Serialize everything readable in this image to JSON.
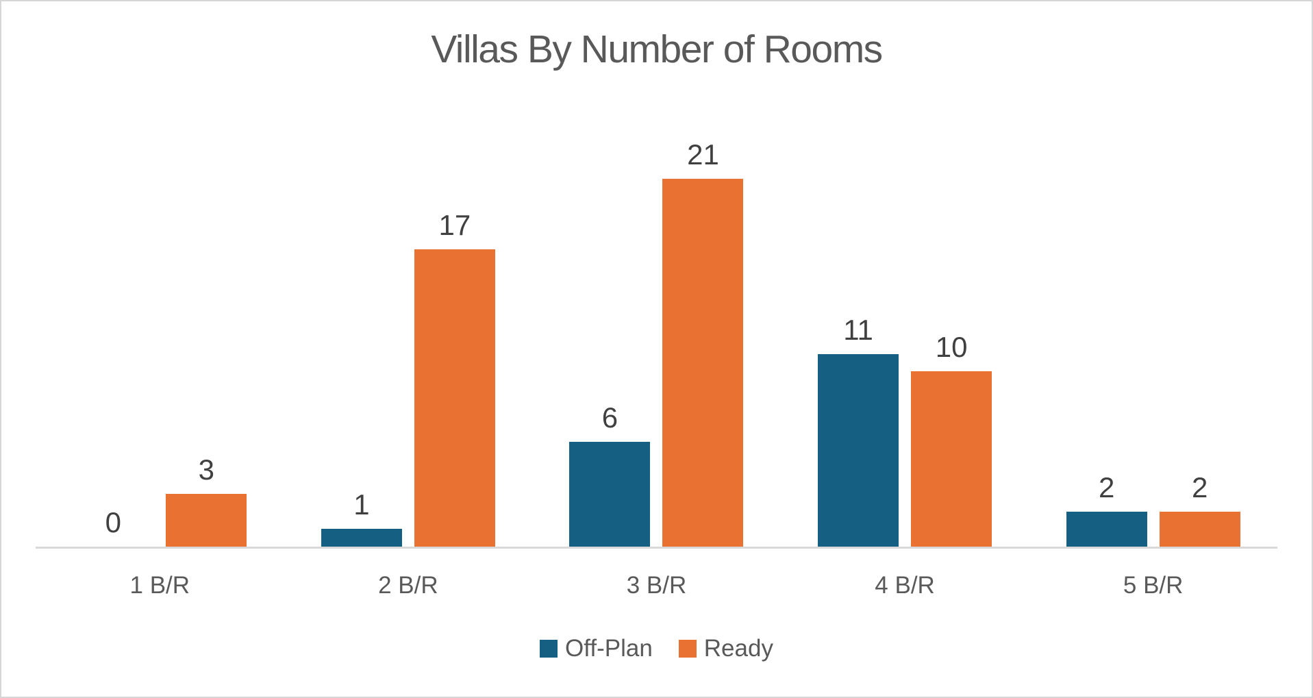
{
  "title": "Villas By Number of Rooms",
  "chart_data": {
    "type": "bar",
    "title": "Villas By Number of Rooms",
    "categories": [
      "1 B/R",
      "2 B/R",
      "3 B/R",
      "4 B/R",
      "5 B/R"
    ],
    "series": [
      {
        "name": "Off-Plan",
        "color": "#156082",
        "values": [
          0,
          1,
          6,
          11,
          2
        ]
      },
      {
        "name": "Ready",
        "color": "#E97132",
        "values": [
          3,
          17,
          21,
          10,
          2
        ]
      }
    ],
    "xlabel": "",
    "ylabel": "",
    "ylim": [
      0,
      27
    ],
    "grid": false,
    "y_axis_visible": false,
    "data_labels": true,
    "legend_position": "bottom"
  },
  "colors": {
    "off_plan": "#156082",
    "ready": "#E97132",
    "axis_line": "#D9D9D9",
    "canvas_border": "#D6D6D6",
    "title_text": "#595959",
    "axis_text": "#595959",
    "data_label_text": "#404040",
    "background": "#FFFFFF"
  }
}
